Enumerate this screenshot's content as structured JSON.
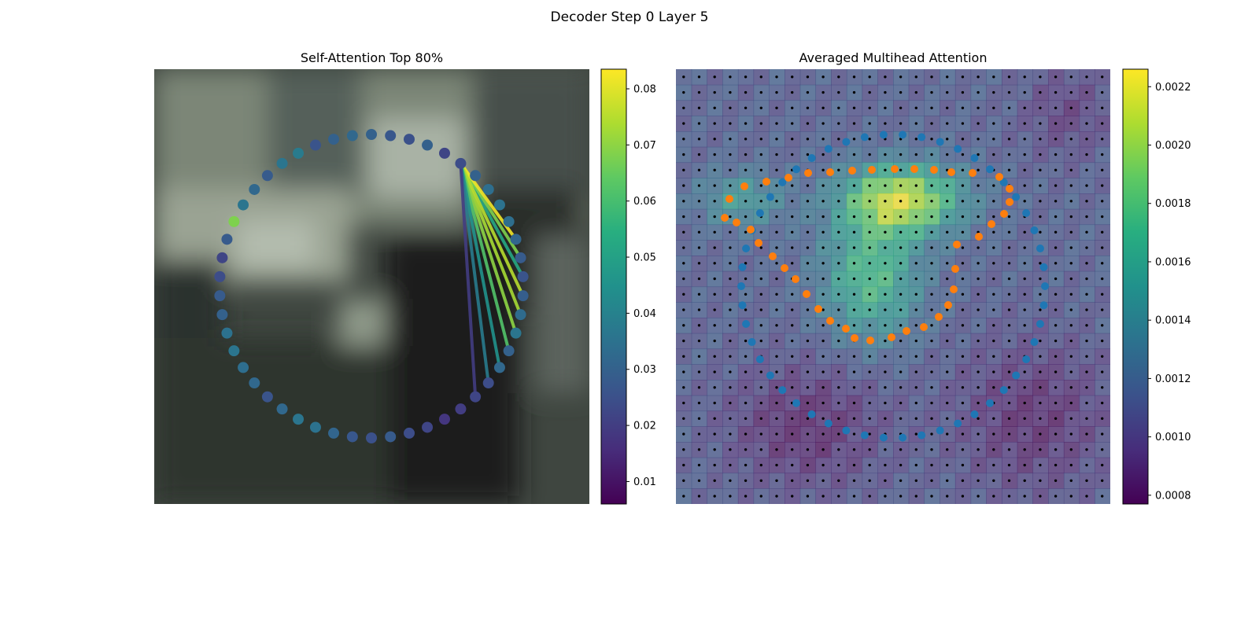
{
  "figure": {
    "suptitle": "Decoder Step 0 Layer 5",
    "left_panel": {
      "title": "Self-Attention Top 80%"
    },
    "right_panel": {
      "title": "Averaged Multihead Attention"
    }
  },
  "colorbars": {
    "left": {
      "min": 0.006,
      "max": 0.0835,
      "ticks": [
        "0.01",
        "0.02",
        "0.03",
        "0.04",
        "0.05",
        "0.06",
        "0.07",
        "0.08"
      ]
    },
    "right": {
      "min": 0.00077,
      "max": 0.00226,
      "ticks": [
        "0.0008",
        "0.0010",
        "0.0012",
        "0.0014",
        "0.0016",
        "0.0018",
        "0.0020",
        "0.0022"
      ]
    }
  },
  "colors": {
    "contour_points_right": "#1f77b4",
    "predicted_points_right": "#ff7f0e",
    "grid_dots": "#000000"
  },
  "icons": {
    "colormap": "viridis"
  },
  "chart_data": {
    "type": "scatter",
    "left_contour": {
      "point_count": 50,
      "point_values": [
        0.024,
        0.03,
        0.034,
        0.035,
        0.034,
        0.031,
        0.028,
        0.026,
        0.029,
        0.033,
        0.036,
        0.03,
        0.032,
        0.024,
        0.022,
        0.02,
        0.018,
        0.022,
        0.024,
        0.028,
        0.025,
        0.027,
        0.031,
        0.035,
        0.036,
        0.032,
        0.026,
        0.032,
        0.034,
        0.036,
        0.035,
        0.03,
        0.028,
        0.024,
        0.022,
        0.028,
        0.068,
        0.036,
        0.032,
        0.028,
        0.036,
        0.038,
        0.026,
        0.03,
        0.032,
        0.03,
        0.027,
        0.025,
        0.03,
        0.022
      ],
      "source_point": 0,
      "attention_edges": [
        {
          "to": 7,
          "value": 0.052
        },
        {
          "to": 6,
          "value": 0.068
        },
        {
          "to": 5,
          "value": 0.082
        },
        {
          "to": 9,
          "value": 0.073
        },
        {
          "to": 8,
          "value": 0.075
        },
        {
          "to": 10,
          "value": 0.07
        },
        {
          "to": 11,
          "value": 0.062
        },
        {
          "to": 12,
          "value": 0.045
        },
        {
          "to": 13,
          "value": 0.038
        },
        {
          "to": 14,
          "value": 0.02
        }
      ]
    },
    "right_heatmap": {
      "rows": 28,
      "cols": 28
    }
  }
}
